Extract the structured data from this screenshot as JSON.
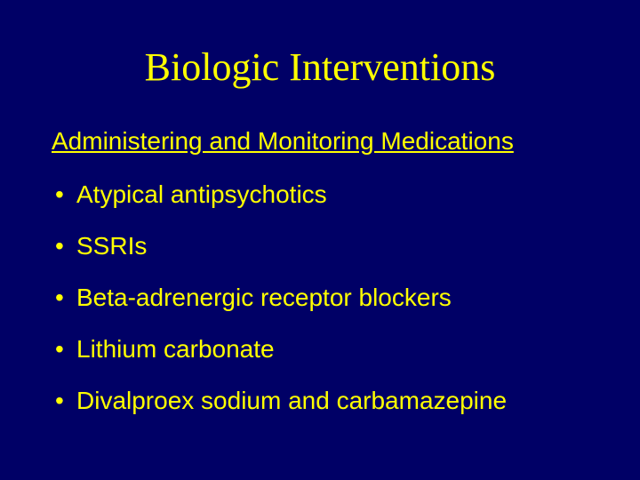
{
  "slide": {
    "background_color": "#000066",
    "text_color": "#ffff00",
    "title": {
      "text": "Biologic Interventions",
      "fontsize": 44,
      "font_family": "Times New Roman, serif",
      "color": "#ffff00"
    },
    "subtitle": {
      "text": "Administering and Monitoring Medications",
      "fontsize": 28,
      "underline": true,
      "color": "#ffff00"
    },
    "bullets": {
      "fontsize": 28,
      "color": "#ffff00",
      "items": [
        "Atypical antipsychotics",
        "SSRIs",
        "Beta-adrenergic receptor blockers",
        "Lithium carbonate",
        "Divalproex sodium and carbamazepine"
      ]
    }
  }
}
